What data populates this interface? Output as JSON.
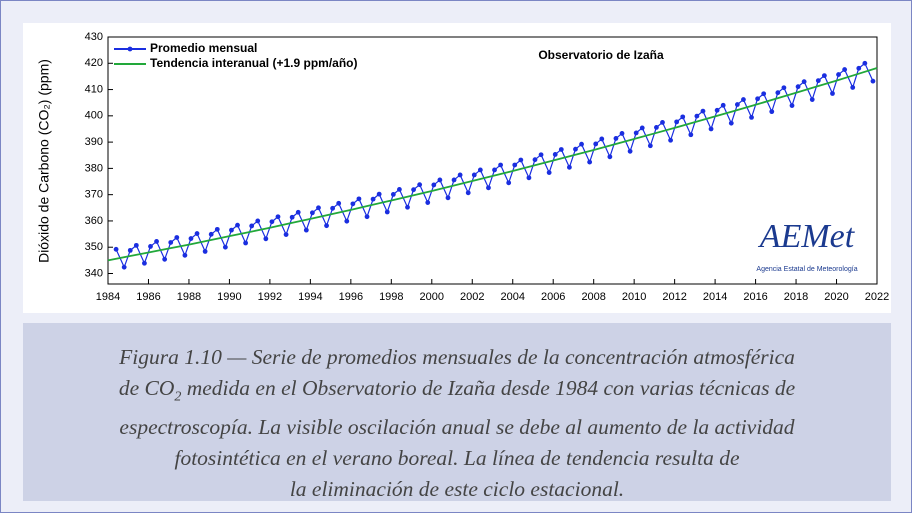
{
  "chart_data": {
    "type": "line",
    "annotation": "Observatorio de Izaña",
    "y_label": "Dióxido de Carbono (CO₂) (ppm)",
    "logo": "AEMet",
    "logo_subtitle": "Agencia Estatal de Meteorología",
    "xlim": [
      1984,
      2022
    ],
    "xticks": [
      1984,
      1986,
      1988,
      1990,
      1992,
      1994,
      1996,
      1998,
      2000,
      2002,
      2004,
      2006,
      2008,
      2010,
      2012,
      2014,
      2016,
      2018,
      2020,
      2022
    ],
    "ylim": [
      336,
      430
    ],
    "yticks": [
      340,
      350,
      360,
      370,
      380,
      390,
      400,
      410,
      420,
      430
    ],
    "legend": "upper left",
    "series": [
      {
        "name": "Promedio mensual",
        "color": "#1a2ee0",
        "x": [
          1984.4,
          1984.8,
          1985.1,
          1985.4,
          1985.8,
          1986.1,
          1986.4,
          1986.8,
          1987.1,
          1987.4,
          1987.8,
          1988.1,
          1988.4,
          1988.8,
          1989.1,
          1989.4,
          1989.8,
          1990.1,
          1990.4,
          1990.8,
          1991.1,
          1991.4,
          1991.8,
          1992.1,
          1992.4,
          1992.8,
          1993.1,
          1993.4,
          1993.8,
          1994.1,
          1994.4,
          1994.8,
          1995.1,
          1995.4,
          1995.8,
          1996.1,
          1996.4,
          1996.8,
          1997.1,
          1997.4,
          1997.8,
          1998.1,
          1998.4,
          1998.8,
          1999.1,
          1999.4,
          1999.8,
          2000.1,
          2000.4,
          2000.8,
          2001.1,
          2001.4,
          2001.8,
          2002.1,
          2002.4,
          2002.8,
          2003.1,
          2003.4,
          2003.8,
          2004.1,
          2004.4,
          2004.8,
          2005.1,
          2005.4,
          2005.8,
          2006.1,
          2006.4,
          2006.8,
          2007.1,
          2007.4,
          2007.8,
          2008.1,
          2008.4,
          2008.8,
          2009.1,
          2009.4,
          2009.8,
          2010.1,
          2010.4,
          2010.8,
          2011.1,
          2011.4,
          2011.8,
          2012.1,
          2012.4,
          2012.8,
          2013.1,
          2013.4,
          2013.8,
          2014.1,
          2014.4,
          2014.8,
          2015.1,
          2015.4,
          2015.8,
          2016.1,
          2016.4,
          2016.8,
          2017.1,
          2017.4,
          2017.8,
          2018.1,
          2018.4,
          2018.8,
          2019.1,
          2019.4,
          2019.8,
          2020.1,
          2020.4,
          2020.8,
          2021.1,
          2021.4,
          2021.8
        ],
        "values": [
          349.2,
          342.4,
          348.8,
          350.7,
          343.9,
          350.3,
          352.2,
          345.4,
          351.8,
          353.7,
          346.9,
          353.3,
          355.2,
          348.4,
          354.9,
          356.8,
          350.0,
          356.5,
          358.4,
          351.6,
          358.1,
          360.0,
          353.2,
          359.7,
          361.6,
          354.8,
          361.4,
          363.3,
          356.5,
          363.1,
          365.0,
          358.2,
          364.8,
          366.7,
          359.9,
          366.5,
          368.4,
          361.6,
          368.3,
          370.2,
          363.4,
          370.1,
          372.0,
          365.2,
          371.9,
          373.8,
          367.0,
          373.7,
          375.6,
          368.8,
          375.6,
          377.5,
          370.7,
          377.5,
          379.4,
          372.6,
          379.4,
          381.3,
          374.5,
          381.3,
          383.2,
          376.4,
          383.3,
          385.2,
          378.4,
          385.3,
          387.2,
          380.4,
          387.3,
          389.2,
          382.4,
          389.3,
          391.2,
          384.4,
          391.4,
          393.3,
          386.5,
          393.5,
          395.4,
          388.6,
          395.6,
          397.5,
          390.7,
          397.7,
          399.6,
          392.8,
          399.9,
          401.8,
          395.0,
          402.1,
          404.0,
          397.2,
          404.3,
          406.2,
          399.4,
          406.5,
          408.4,
          401.6,
          408.8,
          410.7,
          403.9,
          411.1,
          413.0,
          406.2,
          413.4,
          415.3,
          408.5,
          415.7,
          417.6,
          410.8,
          418.1,
          420.0,
          413.2
        ]
      },
      {
        "name": "Tendencia interanual (+1.9 ppm/año)",
        "color": "#22a83a",
        "x": [
          1984,
          1985,
          1986,
          1987,
          1988,
          1989,
          1990,
          1991,
          1992,
          1993,
          1994,
          1995,
          1996,
          1997,
          1998,
          1999,
          2000,
          2001,
          2002,
          2003,
          2004,
          2005,
          2006,
          2007,
          2008,
          2009,
          2010,
          2011,
          2012,
          2013,
          2014,
          2015,
          2016,
          2017,
          2018,
          2019,
          2020,
          2021,
          2022
        ],
        "values": [
          345.0,
          346.5,
          348.0,
          349.5,
          351.0,
          352.6,
          354.2,
          355.8,
          357.4,
          359.1,
          360.8,
          362.5,
          364.2,
          366.0,
          367.8,
          369.6,
          371.4,
          373.3,
          375.2,
          377.1,
          379.0,
          381.0,
          383.0,
          385.0,
          387.0,
          389.1,
          391.2,
          393.3,
          395.4,
          397.6,
          399.8,
          402.0,
          404.2,
          406.5,
          408.8,
          411.1,
          413.4,
          415.8,
          418.2
        ]
      }
    ]
  },
  "caption": {
    "line1": "Figura 1.10 — Serie de promedios mensuales de la concentración atmosférica",
    "line2a": "de CO",
    "line2sub": "2",
    "line2b": " medida en el Observatorio de Izaña desde 1984 con varias técnicas de",
    "line3": "espectroscopía. La visible oscilación anual se debe al aumento de la actividad",
    "line4": "fotosintética en el verano boreal. La línea de tendencia resulta de",
    "line5": "la eliminación de este ciclo estacional."
  }
}
